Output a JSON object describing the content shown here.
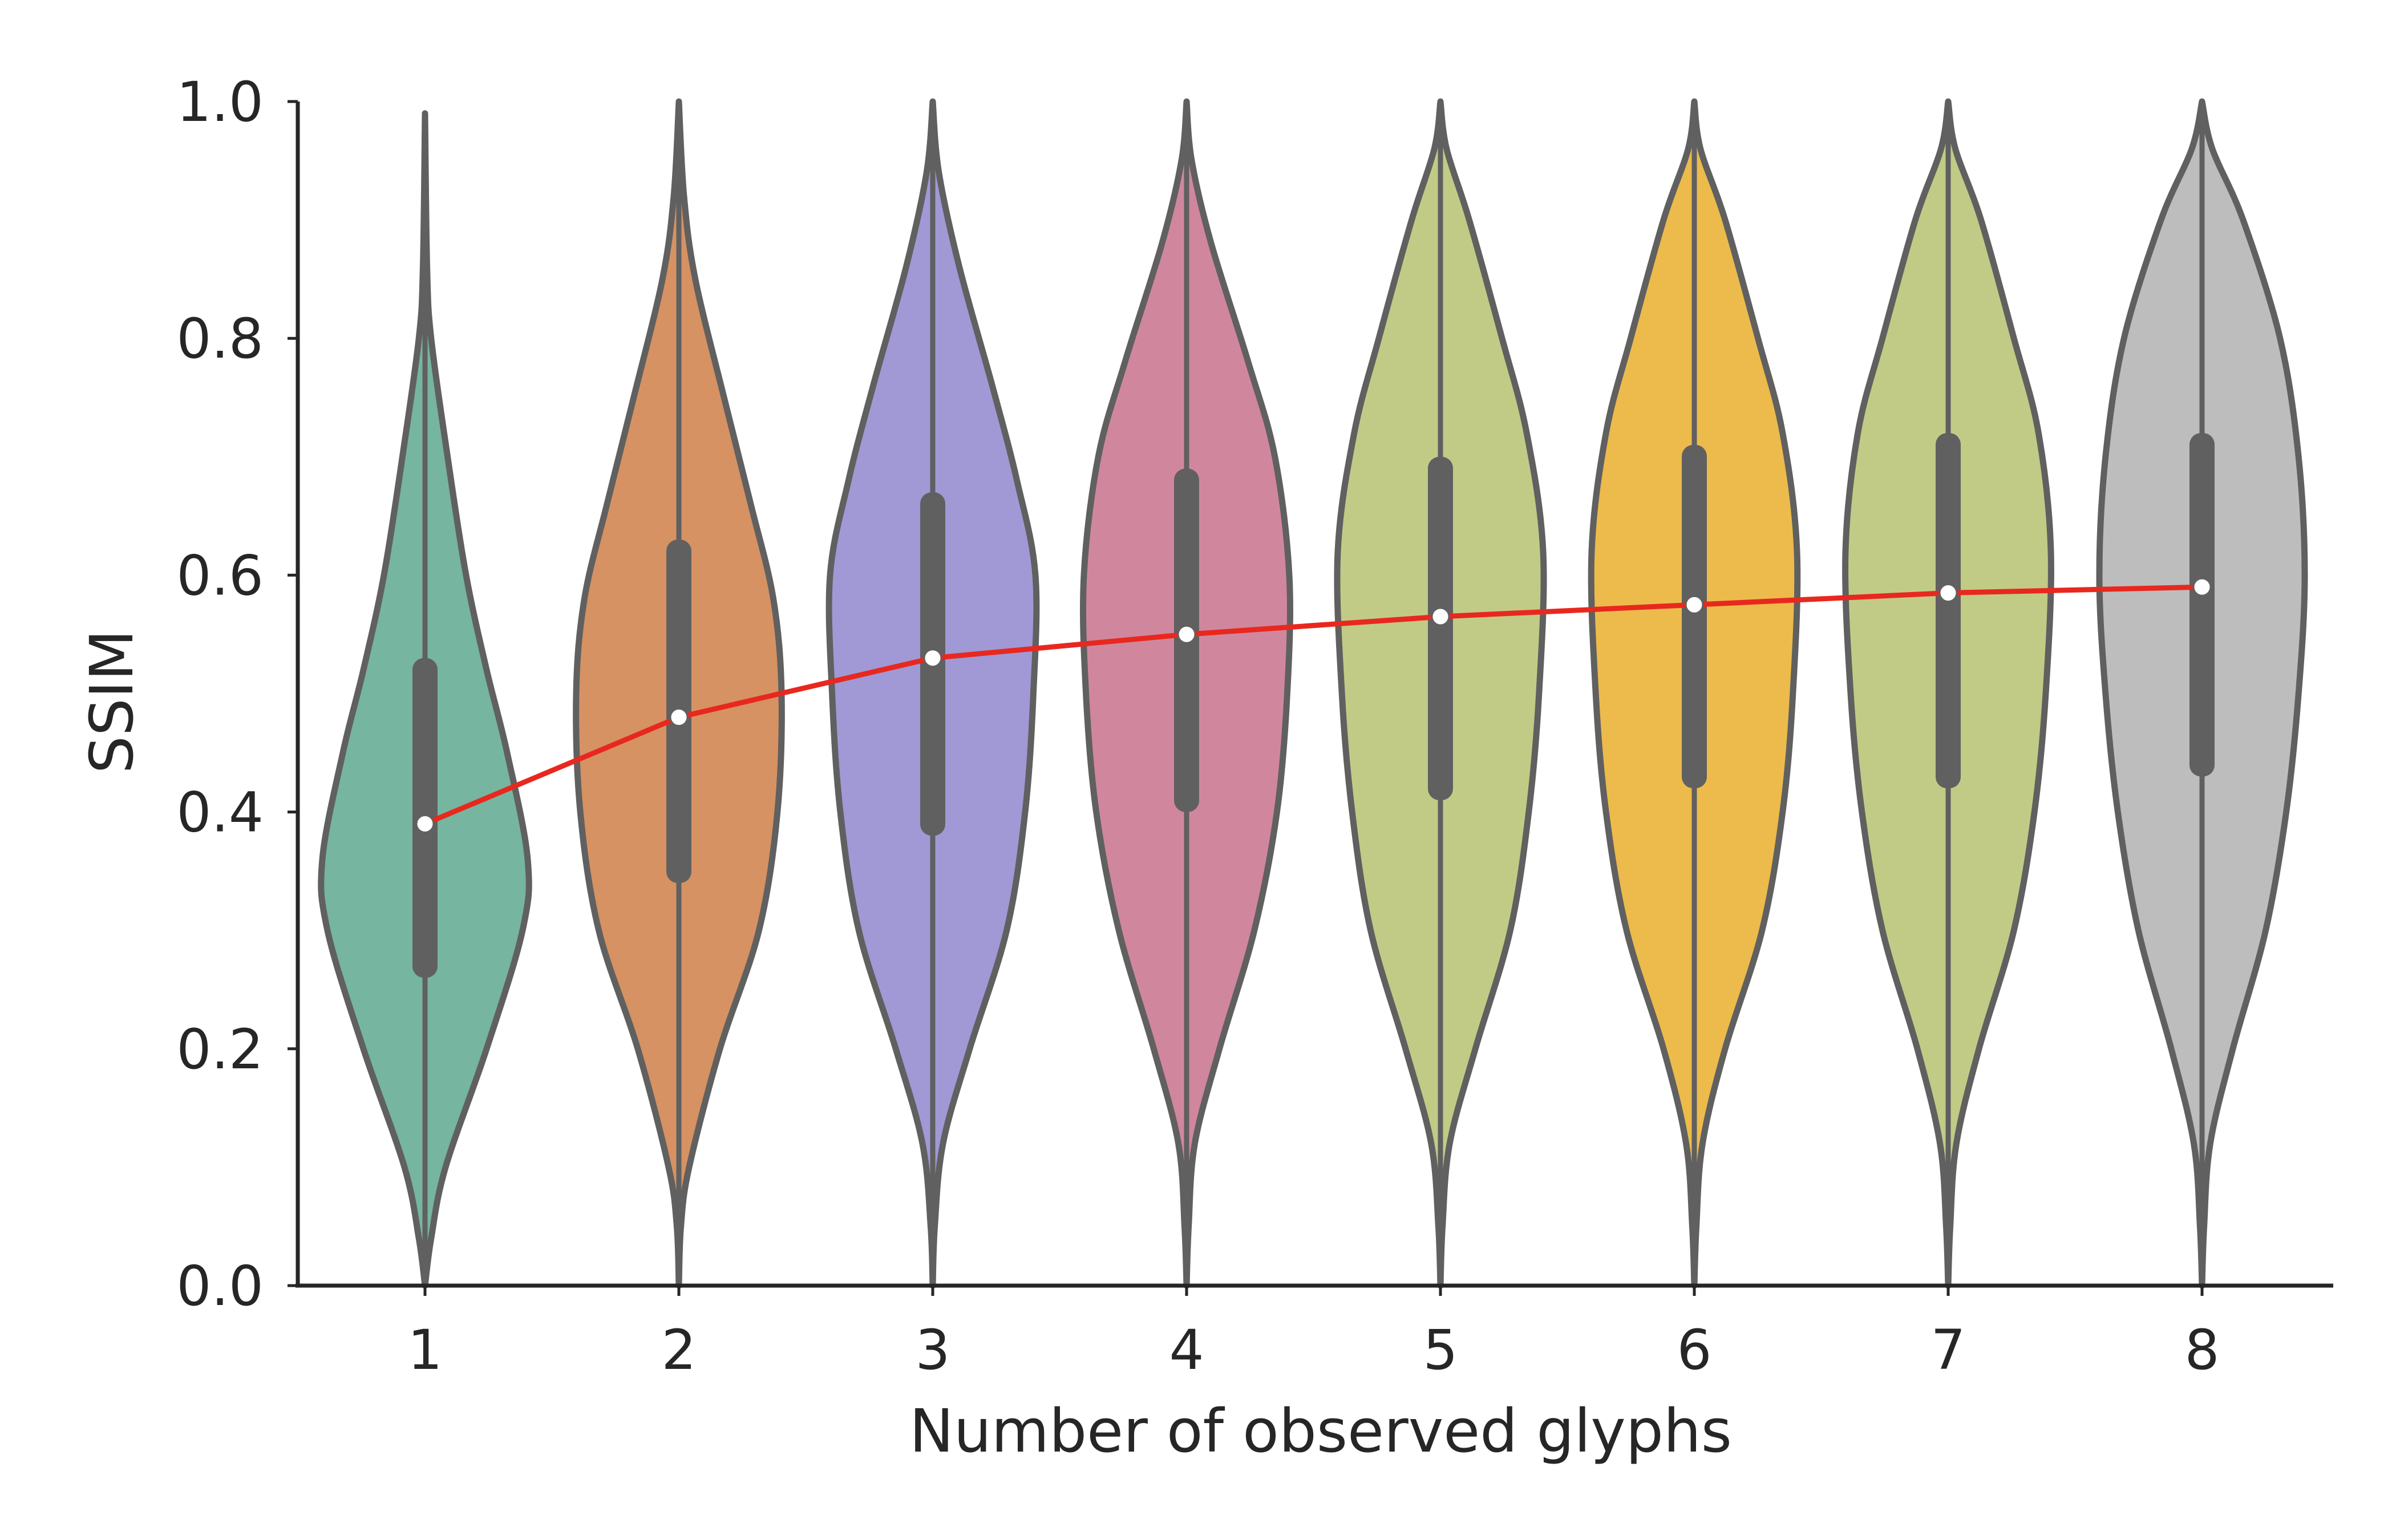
{
  "chart_data": {
    "type": "violin",
    "title": "",
    "xlabel": "Number of observed glyphs",
    "ylabel": "SSIM",
    "ylim": [
      0.0,
      1.0
    ],
    "yticks": [
      "0.0",
      "0.2",
      "0.4",
      "0.6",
      "0.8",
      "1.0"
    ],
    "categories": [
      "1",
      "2",
      "3",
      "4",
      "5",
      "6",
      "7",
      "8"
    ],
    "grid": false,
    "legend": "none",
    "series": [
      {
        "category": "1",
        "color": "#76b59f",
        "min": 0.0,
        "max": 0.99,
        "q1": 0.26,
        "q3": 0.53,
        "median": 0.39,
        "density": [
          [
            0.0,
            0.0
          ],
          [
            0.04,
            0.06
          ],
          [
            0.1,
            0.2
          ],
          [
            0.2,
            0.6
          ],
          [
            0.3,
            0.95
          ],
          [
            0.36,
            1.0
          ],
          [
            0.45,
            0.8
          ],
          [
            0.52,
            0.6
          ],
          [
            0.6,
            0.4
          ],
          [
            0.7,
            0.22
          ],
          [
            0.8,
            0.06
          ],
          [
            0.86,
            0.02
          ],
          [
            0.99,
            0.0
          ]
        ]
      },
      {
        "category": "2",
        "color": "#d69263",
        "min": 0.0,
        "max": 1.0,
        "q1": 0.34,
        "q3": 0.63,
        "median": 0.48,
        "density": [
          [
            0.0,
            0.0
          ],
          [
            0.05,
            0.02
          ],
          [
            0.1,
            0.1
          ],
          [
            0.2,
            0.4
          ],
          [
            0.3,
            0.78
          ],
          [
            0.4,
            0.96
          ],
          [
            0.5,
            1.0
          ],
          [
            0.58,
            0.92
          ],
          [
            0.66,
            0.7
          ],
          [
            0.75,
            0.44
          ],
          [
            0.85,
            0.16
          ],
          [
            0.92,
            0.05
          ],
          [
            1.0,
            0.0
          ]
        ]
      },
      {
        "category": "3",
        "color": "#a099d6",
        "min": 0.0,
        "max": 1.0,
        "q1": 0.38,
        "q3": 0.67,
        "median": 0.53,
        "density": [
          [
            0.0,
            0.0
          ],
          [
            0.05,
            0.02
          ],
          [
            0.12,
            0.1
          ],
          [
            0.2,
            0.36
          ],
          [
            0.3,
            0.72
          ],
          [
            0.4,
            0.9
          ],
          [
            0.5,
            0.98
          ],
          [
            0.6,
            1.0
          ],
          [
            0.68,
            0.82
          ],
          [
            0.76,
            0.58
          ],
          [
            0.86,
            0.26
          ],
          [
            0.94,
            0.06
          ],
          [
            1.0,
            0.0
          ]
        ]
      },
      {
        "category": "4",
        "color": "#d0879e",
        "min": 0.0,
        "max": 1.0,
        "q1": 0.4,
        "q3": 0.69,
        "median": 0.55,
        "density": [
          [
            0.0,
            0.0
          ],
          [
            0.05,
            0.02
          ],
          [
            0.12,
            0.08
          ],
          [
            0.2,
            0.32
          ],
          [
            0.3,
            0.66
          ],
          [
            0.4,
            0.88
          ],
          [
            0.5,
            0.98
          ],
          [
            0.6,
            1.0
          ],
          [
            0.7,
            0.86
          ],
          [
            0.78,
            0.6
          ],
          [
            0.88,
            0.24
          ],
          [
            0.95,
            0.05
          ],
          [
            1.0,
            0.0
          ]
        ]
      },
      {
        "category": "5",
        "color": "#c2cb86",
        "min": 0.0,
        "max": 1.0,
        "q1": 0.41,
        "q3": 0.7,
        "median": 0.565,
        "density": [
          [
            0.0,
            0.0
          ],
          [
            0.05,
            0.02
          ],
          [
            0.12,
            0.09
          ],
          [
            0.2,
            0.34
          ],
          [
            0.3,
            0.68
          ],
          [
            0.4,
            0.86
          ],
          [
            0.5,
            0.96
          ],
          [
            0.62,
            1.0
          ],
          [
            0.72,
            0.84
          ],
          [
            0.8,
            0.6
          ],
          [
            0.9,
            0.28
          ],
          [
            0.96,
            0.06
          ],
          [
            1.0,
            0.0
          ]
        ]
      },
      {
        "category": "6",
        "color": "#ecbb4c",
        "min": 0.0,
        "max": 1.0,
        "q1": 0.42,
        "q3": 0.71,
        "median": 0.575,
        "density": [
          [
            0.0,
            0.0
          ],
          [
            0.05,
            0.02
          ],
          [
            0.12,
            0.08
          ],
          [
            0.2,
            0.3
          ],
          [
            0.3,
            0.66
          ],
          [
            0.4,
            0.86
          ],
          [
            0.5,
            0.96
          ],
          [
            0.62,
            1.0
          ],
          [
            0.72,
            0.86
          ],
          [
            0.8,
            0.62
          ],
          [
            0.9,
            0.3
          ],
          [
            0.96,
            0.06
          ],
          [
            1.0,
            0.0
          ]
        ]
      },
      {
        "category": "7",
        "color": "#c2cb86",
        "min": 0.0,
        "max": 1.0,
        "q1": 0.42,
        "q3": 0.72,
        "median": 0.585,
        "density": [
          [
            0.0,
            0.0
          ],
          [
            0.05,
            0.02
          ],
          [
            0.12,
            0.08
          ],
          [
            0.2,
            0.3
          ],
          [
            0.3,
            0.64
          ],
          [
            0.4,
            0.84
          ],
          [
            0.5,
            0.95
          ],
          [
            0.62,
            1.0
          ],
          [
            0.72,
            0.88
          ],
          [
            0.8,
            0.64
          ],
          [
            0.9,
            0.32
          ],
          [
            0.96,
            0.07
          ],
          [
            1.0,
            0.0
          ]
        ]
      },
      {
        "category": "8",
        "color": "#bdbdbd",
        "min": 0.0,
        "max": 1.0,
        "q1": 0.43,
        "q3": 0.72,
        "median": 0.59,
        "density": [
          [
            0.0,
            0.0
          ],
          [
            0.05,
            0.02
          ],
          [
            0.12,
            0.08
          ],
          [
            0.2,
            0.3
          ],
          [
            0.3,
            0.62
          ],
          [
            0.4,
            0.82
          ],
          [
            0.5,
            0.94
          ],
          [
            0.6,
            1.0
          ],
          [
            0.7,
            0.94
          ],
          [
            0.8,
            0.76
          ],
          [
            0.9,
            0.4
          ],
          [
            0.96,
            0.1
          ],
          [
            1.0,
            0.0
          ]
        ]
      }
    ],
    "trend_line": {
      "color": "#e8281f",
      "values": [
        0.39,
        0.48,
        0.53,
        0.55,
        0.565,
        0.575,
        0.585,
        0.59
      ]
    }
  }
}
